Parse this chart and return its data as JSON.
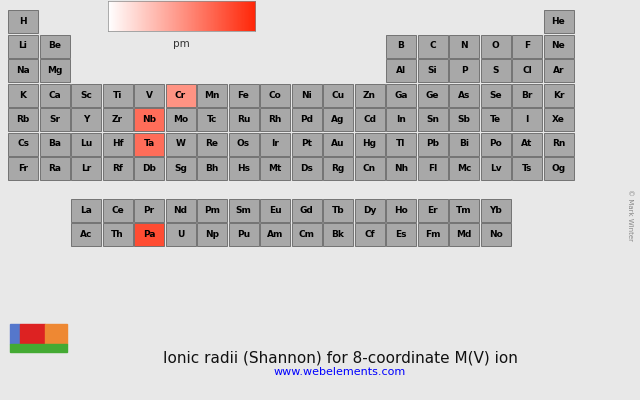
{
  "title": "Ionic radii (Shannon) for 8-coordinate M(V) ion",
  "url": "www.webelements.com",
  "colorbar_label": "pm",
  "colorbar_min": 0,
  "colorbar_max": 110,
  "bg_color": "#e8e8e8",
  "default_cell_color": "#a8a8a8",
  "cell_edge_color": "#666666",
  "cell_text_color": "#000000",
  "elements": {
    "H": {
      "row": 1,
      "col": 1,
      "value": null
    },
    "He": {
      "row": 1,
      "col": 18,
      "value": null
    },
    "Li": {
      "row": 2,
      "col": 1,
      "value": null
    },
    "Be": {
      "row": 2,
      "col": 2,
      "value": null
    },
    "B": {
      "row": 2,
      "col": 13,
      "value": null
    },
    "C": {
      "row": 2,
      "col": 14,
      "value": null
    },
    "N": {
      "row": 2,
      "col": 15,
      "value": null
    },
    "O": {
      "row": 2,
      "col": 16,
      "value": null
    },
    "F": {
      "row": 2,
      "col": 17,
      "value": null
    },
    "Ne": {
      "row": 2,
      "col": 18,
      "value": null
    },
    "Na": {
      "row": 3,
      "col": 1,
      "value": null
    },
    "Mg": {
      "row": 3,
      "col": 2,
      "value": null
    },
    "Al": {
      "row": 3,
      "col": 13,
      "value": null
    },
    "Si": {
      "row": 3,
      "col": 14,
      "value": null
    },
    "P": {
      "row": 3,
      "col": 15,
      "value": null
    },
    "S": {
      "row": 3,
      "col": 16,
      "value": null
    },
    "Cl": {
      "row": 3,
      "col": 17,
      "value": null
    },
    "Ar": {
      "row": 3,
      "col": 18,
      "value": null
    },
    "K": {
      "row": 4,
      "col": 1,
      "value": null
    },
    "Ca": {
      "row": 4,
      "col": 2,
      "value": null
    },
    "Sc": {
      "row": 4,
      "col": 3,
      "value": null
    },
    "Ti": {
      "row": 4,
      "col": 4,
      "value": null
    },
    "V": {
      "row": 4,
      "col": 5,
      "value": null
    },
    "Cr": {
      "row": 4,
      "col": 6,
      "value": 55
    },
    "Mn": {
      "row": 4,
      "col": 7,
      "value": null
    },
    "Fe": {
      "row": 4,
      "col": 8,
      "value": null
    },
    "Co": {
      "row": 4,
      "col": 9,
      "value": null
    },
    "Ni": {
      "row": 4,
      "col": 10,
      "value": null
    },
    "Cu": {
      "row": 4,
      "col": 11,
      "value": null
    },
    "Zn": {
      "row": 4,
      "col": 12,
      "value": null
    },
    "Ga": {
      "row": 4,
      "col": 13,
      "value": null
    },
    "Ge": {
      "row": 4,
      "col": 14,
      "value": null
    },
    "As": {
      "row": 4,
      "col": 15,
      "value": null
    },
    "Se": {
      "row": 4,
      "col": 16,
      "value": null
    },
    "Br": {
      "row": 4,
      "col": 17,
      "value": null
    },
    "Kr": {
      "row": 4,
      "col": 18,
      "value": null
    },
    "Rb": {
      "row": 5,
      "col": 1,
      "value": null
    },
    "Sr": {
      "row": 5,
      "col": 2,
      "value": null
    },
    "Y": {
      "row": 5,
      "col": 3,
      "value": null
    },
    "Zr": {
      "row": 5,
      "col": 4,
      "value": null
    },
    "Nb": {
      "row": 5,
      "col": 5,
      "value": 74
    },
    "Mo": {
      "row": 5,
      "col": 6,
      "value": null
    },
    "Tc": {
      "row": 5,
      "col": 7,
      "value": null
    },
    "Ru": {
      "row": 5,
      "col": 8,
      "value": null
    },
    "Rh": {
      "row": 5,
      "col": 9,
      "value": null
    },
    "Pd": {
      "row": 5,
      "col": 10,
      "value": null
    },
    "Ag": {
      "row": 5,
      "col": 11,
      "value": null
    },
    "Cd": {
      "row": 5,
      "col": 12,
      "value": null
    },
    "In": {
      "row": 5,
      "col": 13,
      "value": null
    },
    "Sn": {
      "row": 5,
      "col": 14,
      "value": null
    },
    "Sb": {
      "row": 5,
      "col": 15,
      "value": null
    },
    "Te": {
      "row": 5,
      "col": 16,
      "value": null
    },
    "I": {
      "row": 5,
      "col": 17,
      "value": null
    },
    "Xe": {
      "row": 5,
      "col": 18,
      "value": null
    },
    "Cs": {
      "row": 6,
      "col": 1,
      "value": null
    },
    "Ba": {
      "row": 6,
      "col": 2,
      "value": null
    },
    "Lu": {
      "row": 6,
      "col": 3,
      "value": null
    },
    "Hf": {
      "row": 6,
      "col": 4,
      "value": null
    },
    "Ta": {
      "row": 6,
      "col": 5,
      "value": 74
    },
    "W": {
      "row": 6,
      "col": 6,
      "value": null
    },
    "Re": {
      "row": 6,
      "col": 7,
      "value": null
    },
    "Os": {
      "row": 6,
      "col": 8,
      "value": null
    },
    "Ir": {
      "row": 6,
      "col": 9,
      "value": null
    },
    "Pt": {
      "row": 6,
      "col": 10,
      "value": null
    },
    "Au": {
      "row": 6,
      "col": 11,
      "value": null
    },
    "Hg": {
      "row": 6,
      "col": 12,
      "value": null
    },
    "Tl": {
      "row": 6,
      "col": 13,
      "value": null
    },
    "Pb": {
      "row": 6,
      "col": 14,
      "value": null
    },
    "Bi": {
      "row": 6,
      "col": 15,
      "value": null
    },
    "Po": {
      "row": 6,
      "col": 16,
      "value": null
    },
    "At": {
      "row": 6,
      "col": 17,
      "value": null
    },
    "Rn": {
      "row": 6,
      "col": 18,
      "value": null
    },
    "Fr": {
      "row": 7,
      "col": 1,
      "value": null
    },
    "Ra": {
      "row": 7,
      "col": 2,
      "value": null
    },
    "Lr": {
      "row": 7,
      "col": 3,
      "value": null
    },
    "Rf": {
      "row": 7,
      "col": 4,
      "value": null
    },
    "Db": {
      "row": 7,
      "col": 5,
      "value": null
    },
    "Sg": {
      "row": 7,
      "col": 6,
      "value": null
    },
    "Bh": {
      "row": 7,
      "col": 7,
      "value": null
    },
    "Hs": {
      "row": 7,
      "col": 8,
      "value": null
    },
    "Mt": {
      "row": 7,
      "col": 9,
      "value": null
    },
    "Ds": {
      "row": 7,
      "col": 10,
      "value": null
    },
    "Rg": {
      "row": 7,
      "col": 11,
      "value": null
    },
    "Cn": {
      "row": 7,
      "col": 12,
      "value": null
    },
    "Nh": {
      "row": 7,
      "col": 13,
      "value": null
    },
    "Fl": {
      "row": 7,
      "col": 14,
      "value": null
    },
    "Mc": {
      "row": 7,
      "col": 15,
      "value": null
    },
    "Lv": {
      "row": 7,
      "col": 16,
      "value": null
    },
    "Ts": {
      "row": 7,
      "col": 17,
      "value": null
    },
    "Og": {
      "row": 7,
      "col": 18,
      "value": null
    },
    "La": {
      "row": 9,
      "col": 3,
      "value": null
    },
    "Ce": {
      "row": 9,
      "col": 4,
      "value": null
    },
    "Pr": {
      "row": 9,
      "col": 5,
      "value": null
    },
    "Nd": {
      "row": 9,
      "col": 6,
      "value": null
    },
    "Pm": {
      "row": 9,
      "col": 7,
      "value": null
    },
    "Sm": {
      "row": 9,
      "col": 8,
      "value": null
    },
    "Eu": {
      "row": 9,
      "col": 9,
      "value": null
    },
    "Gd": {
      "row": 9,
      "col": 10,
      "value": null
    },
    "Tb": {
      "row": 9,
      "col": 11,
      "value": null
    },
    "Dy": {
      "row": 9,
      "col": 12,
      "value": null
    },
    "Ho": {
      "row": 9,
      "col": 13,
      "value": null
    },
    "Er": {
      "row": 9,
      "col": 14,
      "value": null
    },
    "Tm": {
      "row": 9,
      "col": 15,
      "value": null
    },
    "Yb": {
      "row": 9,
      "col": 16,
      "value": null
    },
    "Ac": {
      "row": 10,
      "col": 3,
      "value": null
    },
    "Th": {
      "row": 10,
      "col": 4,
      "value": null
    },
    "Pa": {
      "row": 10,
      "col": 5,
      "value": 91
    },
    "U": {
      "row": 10,
      "col": 6,
      "value": null
    },
    "Np": {
      "row": 10,
      "col": 7,
      "value": null
    },
    "Pu": {
      "row": 10,
      "col": 8,
      "value": null
    },
    "Am": {
      "row": 10,
      "col": 9,
      "value": null
    },
    "Cm": {
      "row": 10,
      "col": 10,
      "value": null
    },
    "Bk": {
      "row": 10,
      "col": 11,
      "value": null
    },
    "Cf": {
      "row": 10,
      "col": 12,
      "value": null
    },
    "Es": {
      "row": 10,
      "col": 13,
      "value": null
    },
    "Fm": {
      "row": 10,
      "col": 14,
      "value": null
    },
    "Md": {
      "row": 10,
      "col": 15,
      "value": null
    },
    "No": {
      "row": 10,
      "col": 16,
      "value": null
    }
  },
  "legend_colors": [
    "#5577cc",
    "#dd2222",
    "#ee8833",
    "#44aa33"
  ],
  "copyright": "© Mark Winter"
}
